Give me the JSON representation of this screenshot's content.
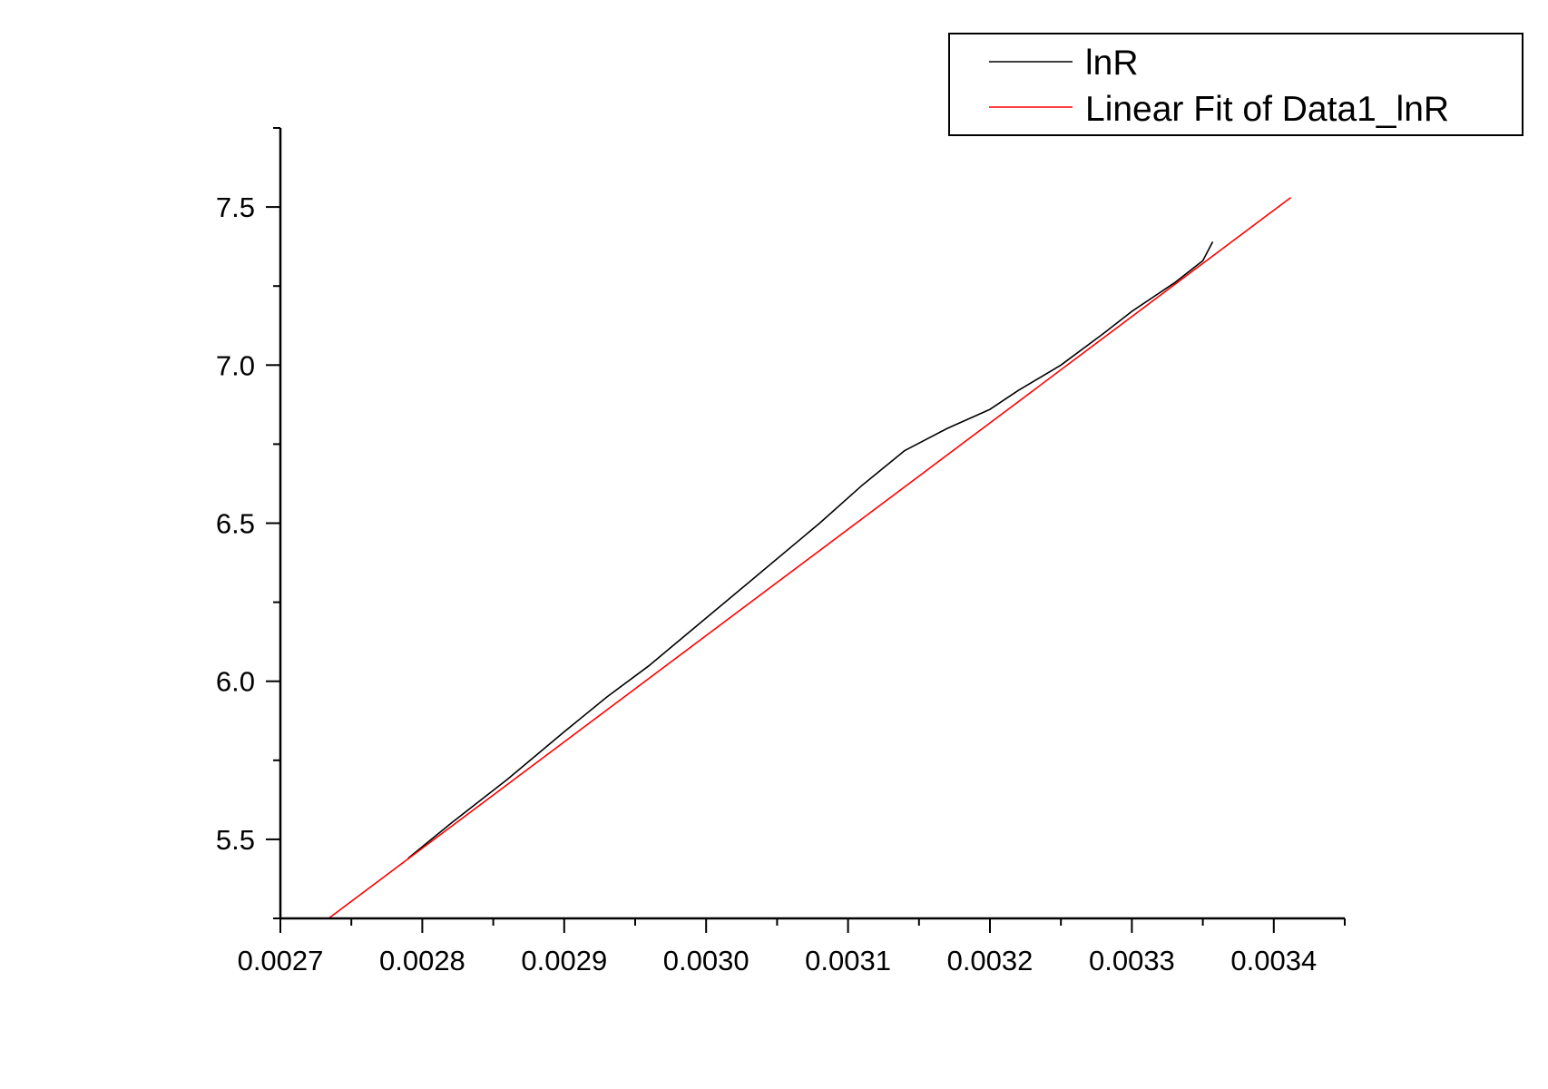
{
  "chart_data": {
    "type": "line",
    "title": "",
    "xlabel": "",
    "ylabel": "",
    "xlim": [
      0.0027,
      0.00345
    ],
    "ylim": [
      5.25,
      7.75
    ],
    "x_ticks": [
      0.0027,
      0.0028,
      0.0029,
      0.003,
      0.0031,
      0.0032,
      0.0033,
      0.0034
    ],
    "x_tick_labels": [
      "0.0027",
      "0.0028",
      "0.0029",
      "0.0030",
      "0.0031",
      "0.0032",
      "0.0033",
      "0.0034"
    ],
    "x_minor_ticks": [
      0.00275,
      0.00285,
      0.00295,
      0.00305,
      0.00315,
      0.00325,
      0.00335,
      0.00345
    ],
    "y_ticks": [
      5.5,
      6.0,
      6.5,
      7.0,
      7.5
    ],
    "y_tick_labels": [
      "5.5",
      "6.0",
      "6.5",
      "7.0",
      "7.5"
    ],
    "y_minor_ticks": [
      5.25,
      5.75,
      6.25,
      6.75,
      7.25,
      7.75
    ],
    "grid": false,
    "legend_position": "top-right",
    "series": [
      {
        "name": "lnR",
        "color": "#000000",
        "x": [
          0.00279,
          0.00282,
          0.00286,
          0.0029,
          0.00293,
          0.00296,
          0.003,
          0.00304,
          0.00308,
          0.00311,
          0.00314,
          0.00317,
          0.0032,
          0.00322,
          0.00325,
          0.00328,
          0.0033,
          0.00333,
          0.00335,
          0.003357
        ],
        "y": [
          5.44,
          5.55,
          5.69,
          5.84,
          5.95,
          6.05,
          6.2,
          6.35,
          6.5,
          6.62,
          6.73,
          6.8,
          6.86,
          6.92,
          7.0,
          7.1,
          7.17,
          7.26,
          7.33,
          7.39
        ]
      },
      {
        "name": "Linear Fit of Data1_lnR",
        "color": "#ff0000",
        "x": [
          0.002734,
          0.003412
        ],
        "y": [
          5.25,
          7.53
        ]
      }
    ]
  },
  "legend": {
    "items": [
      {
        "label": "lnR",
        "color": "#000000"
      },
      {
        "label": "Linear Fit of Data1_lnR",
        "color": "#ff0000"
      }
    ]
  }
}
